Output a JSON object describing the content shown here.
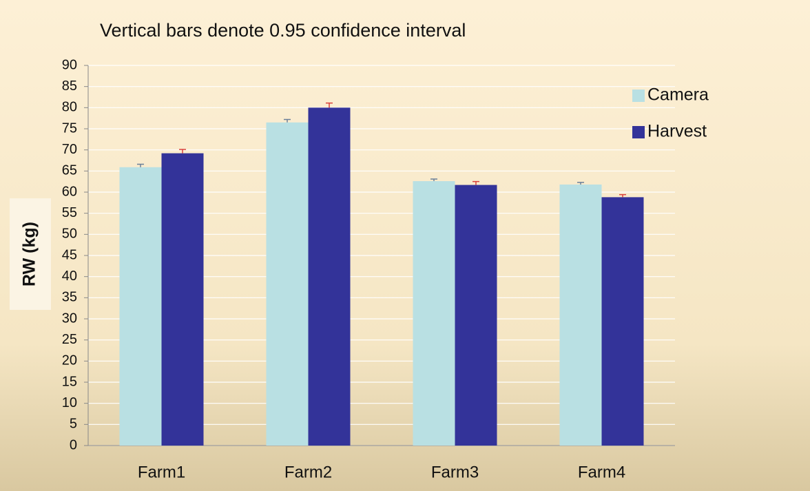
{
  "chart_data": {
    "type": "bar",
    "title": "Vertical bars denote 0.95 confidence interval",
    "y_label": "RW (kg)",
    "categories": [
      "Farm1",
      "Farm2",
      "Farm3",
      "Farm4"
    ],
    "series": [
      {
        "name": "Camera",
        "color": "#b9e0e3",
        "error_color": "#6a7f99",
        "values": [
          65.9,
          76.5,
          62.6,
          61.8
        ],
        "errors": [
          0.7,
          0.7,
          0.5,
          0.5
        ]
      },
      {
        "name": "Harvest",
        "color": "#333399",
        "error_color": "#d9403a",
        "values": [
          69.2,
          80.0,
          61.7,
          58.8
        ],
        "errors": [
          0.9,
          1.1,
          0.8,
          0.6
        ]
      }
    ],
    "ylim": [
      0,
      90
    ],
    "yticks": [
      0,
      5,
      10,
      15,
      20,
      25,
      30,
      35,
      40,
      45,
      50,
      55,
      60,
      65,
      70,
      75,
      80,
      85,
      90
    ],
    "grid": true,
    "legend": "right"
  }
}
